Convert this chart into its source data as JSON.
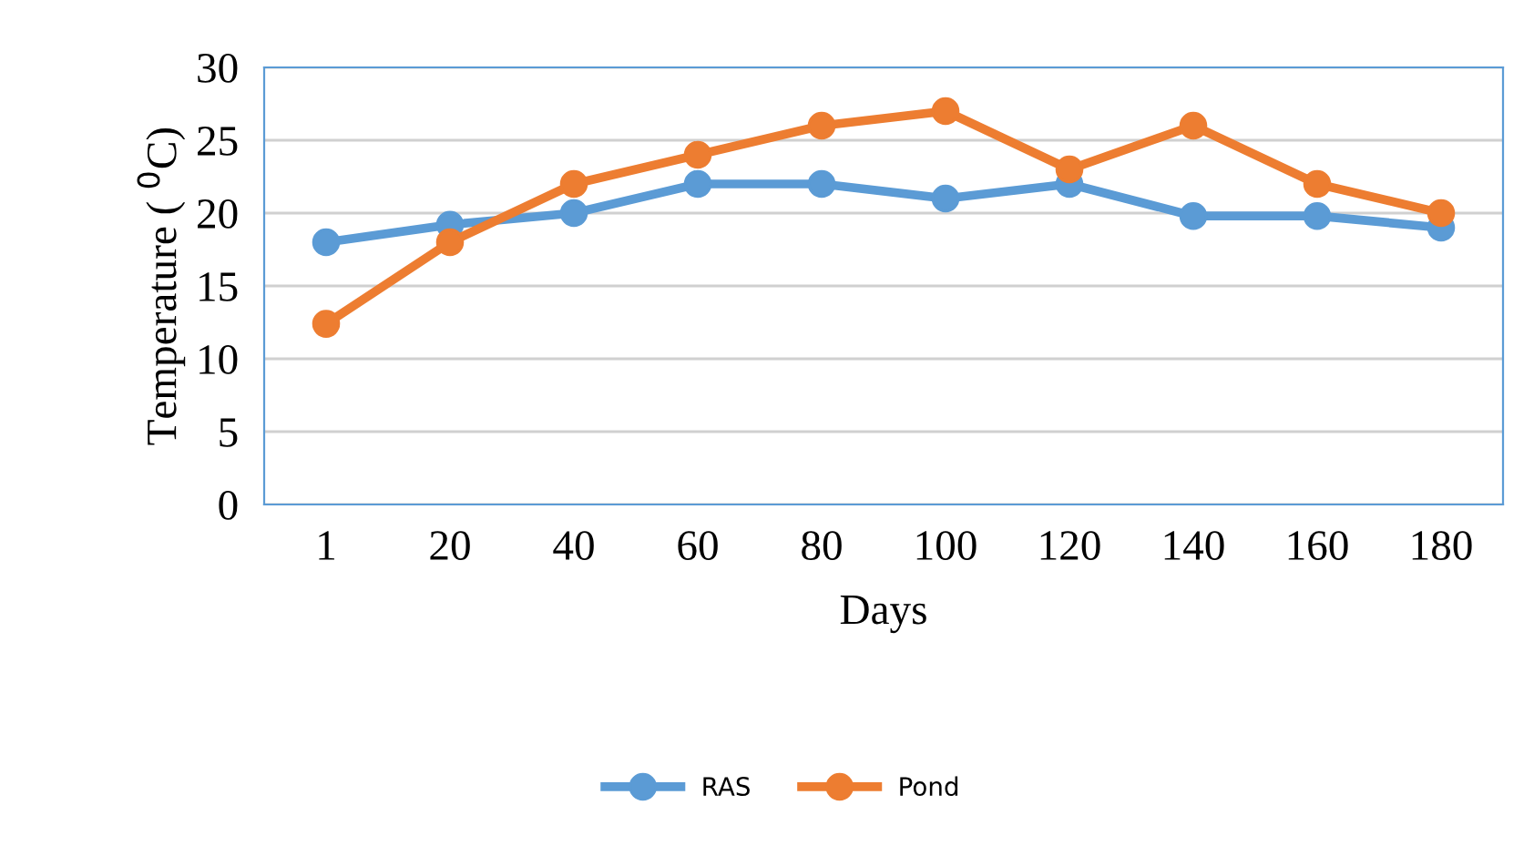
{
  "chart_data": {
    "type": "line",
    "xlabel": "Days",
    "ylabel": "Temperature ( $^{0}$C)",
    "categories": [
      "1",
      "20",
      "40",
      "60",
      "80",
      "100",
      "120",
      "140",
      "160",
      "180"
    ],
    "series": [
      {
        "name": "RAS",
        "color": "#5b9bd5",
        "values": [
          18,
          19.2,
          20,
          22,
          22,
          21,
          22,
          19.8,
          19.8,
          19
        ]
      },
      {
        "name": "Pond",
        "color": "#ed7d31",
        "values": [
          12.4,
          18,
          22,
          24,
          26,
          27,
          23,
          26,
          22,
          20
        ]
      }
    ],
    "ylim": [
      0,
      30
    ],
    "yticks": [
      0,
      5,
      10,
      15,
      20,
      25,
      30
    ],
    "grid": "y",
    "legend": "bottom",
    "marker": "circle",
    "line_style": "solid"
  }
}
